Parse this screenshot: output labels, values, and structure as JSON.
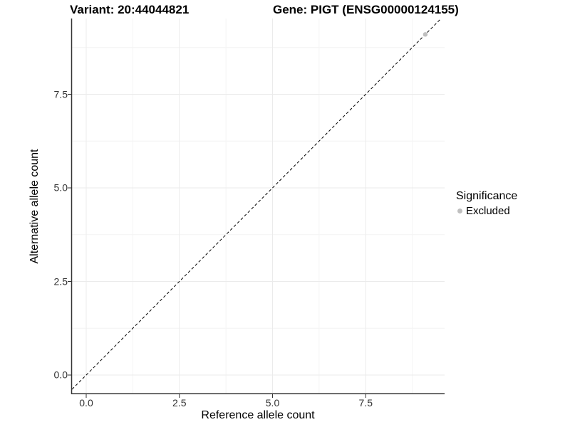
{
  "header": {
    "variant_title": "Variant: 20:44044821",
    "gene_title": "Gene: PIGT (ENSG00000124155)"
  },
  "legend": {
    "title": "Significance",
    "items": [
      {
        "label": "Excluded",
        "color": "#bfbfbf"
      }
    ]
  },
  "chart_data": {
    "type": "scatter",
    "xlabel": "Reference allele count",
    "ylabel": "Alternative allele count",
    "x_ticks": {
      "values": [
        0,
        2.5,
        5,
        7.5
      ],
      "labels": [
        "0.0",
        "2.5",
        "5.0",
        "7.5"
      ]
    },
    "y_ticks": {
      "values": [
        0,
        2.5,
        5,
        7.5
      ],
      "labels": [
        "0.0",
        "2.5",
        "5.0",
        "7.5"
      ]
    },
    "x_minor_ticks": [
      1.25,
      3.75,
      6.25,
      8.75
    ],
    "y_minor_ticks": [
      1.25,
      3.75,
      6.25,
      8.75
    ],
    "xlim": [
      -0.38,
      9.62
    ],
    "ylim": [
      -0.5,
      9.52
    ],
    "grid": true,
    "legend_position": "right",
    "series": [
      {
        "name": "Excluded",
        "color": "#bfbfbf",
        "points": [
          {
            "x": 9.1,
            "y": 9.1
          }
        ]
      }
    ],
    "reference_line": {
      "slope": 1,
      "intercept": 0,
      "style": "dashed",
      "color": "#000000"
    }
  },
  "colors": {
    "background": "#ffffff",
    "grid_major": "#ebebeb",
    "grid_minor": "#f4f4f4",
    "axis": "#333333",
    "tick_text": "#333333"
  }
}
